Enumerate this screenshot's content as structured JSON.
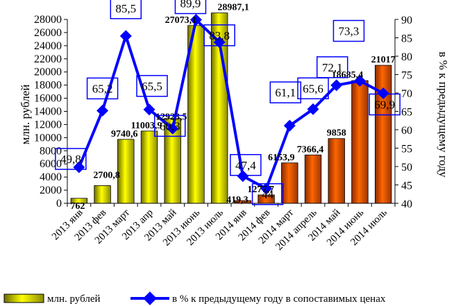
{
  "chart_data": {
    "type": "bar",
    "categories": [
      "2013 янв",
      "2013 фев",
      "2013 март",
      "2013 апр",
      "2013 май",
      "2013 июнь",
      "2013 июль",
      "2014 янв",
      "2014 фев",
      "2014 март",
      "2014 апрель",
      "2014 май",
      "2014 июнь",
      "2014 июль"
    ],
    "series": [
      {
        "name": "млн. рублей",
        "kind": "bar",
        "axis": "left",
        "values": [
          762,
          2700.8,
          9740.6,
          11003.9,
          12923.5,
          27073.1,
          28987.1,
          419.3,
          1277.7,
          6153.9,
          7366.4,
          9858,
          18685.4,
          21017
        ],
        "labels": [
          "762",
          "2700,8",
          "9740,6",
          "11003,9",
          "12923,5",
          "27073,1",
          "28987,1",
          "419,3",
          "1277,7",
          "6153,9",
          "7366,4",
          "9858",
          "18685,4",
          "21017"
        ],
        "colors": [
          "#ffff00",
          "#ffff00",
          "#ffff00",
          "#ffff00",
          "#ffff00",
          "#ffff00",
          "#ffff00",
          "#ff6600",
          "#ff6600",
          "#ff6600",
          "#ff6600",
          "#ff6600",
          "#ff6600",
          "#ff6600"
        ]
      },
      {
        "name": "в % к предыдущему году в сопоставимых ценах",
        "kind": "line",
        "axis": "right",
        "color": "#0000ff",
        "values": [
          49.8,
          65.2,
          85.5,
          65.5,
          60.3,
          89.9,
          83.8,
          47.4,
          44,
          61.1,
          65.6,
          72.1,
          73.3,
          69.9
        ],
        "labels": [
          "49,8",
          "65,2",
          "85,5",
          "65,5",
          "60,3",
          "89,9",
          "83,8",
          "47,4",
          "44",
          "61,1",
          "65,6",
          "72,1",
          "73,3",
          "69,9"
        ]
      }
    ],
    "ylabel": "млн. рублей",
    "y2label": "в % к предыдущему году",
    "ylim": [
      0,
      28000
    ],
    "y2lim": [
      40,
      90
    ],
    "yticks": [
      "0",
      "2000",
      "4000",
      "6000",
      "8000",
      "10000",
      "12000",
      "14000",
      "16000",
      "18000",
      "20000",
      "22000",
      "24000",
      "26000",
      "28000"
    ],
    "y2ticks": [
      "40",
      "45",
      "50",
      "55",
      "60",
      "65",
      "70",
      "75",
      "80",
      "85",
      "90"
    ],
    "grid": false,
    "legend": "bottom"
  }
}
